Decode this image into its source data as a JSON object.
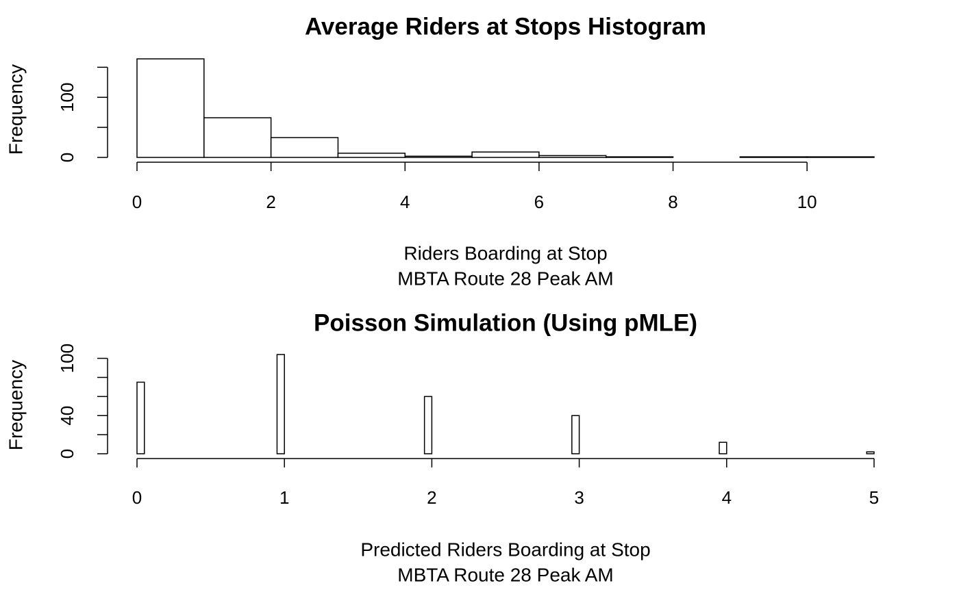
{
  "chart_data": [
    {
      "type": "histogram",
      "title": "Average Riders at Stops Histogram",
      "ylabel": "Frequency",
      "xlabel": [
        "Riders Boarding at Stop",
        "MBTA Route 28 Peak AM"
      ],
      "bins": [
        0,
        1,
        2,
        3,
        4,
        5,
        6,
        7,
        8,
        9,
        10,
        11
      ],
      "values": [
        164,
        66,
        33,
        7,
        2,
        9,
        3,
        1,
        0,
        1,
        1
      ],
      "xlim": [
        0,
        11
      ],
      "xticks": [
        0,
        2,
        4,
        6,
        8,
        10
      ],
      "ylim": [
        0,
        164
      ],
      "yticks": [
        0,
        100
      ],
      "yticks_unlabeled": [
        50,
        150
      ]
    },
    {
      "type": "histogram",
      "title": "Poisson Simulation (Using pMLE)",
      "ylabel": "Frequency",
      "xlabel": [
        "Predicted Riders Boarding at Stop",
        "MBTA Route 28 Peak AM"
      ],
      "bins": [
        0,
        0.05,
        0.1,
        0.15,
        0.2,
        0.25,
        0.3,
        0.35,
        0.4,
        0.45,
        0.5,
        0.55,
        0.6,
        0.65,
        0.7,
        0.75,
        0.8,
        0.85,
        0.9,
        0.95,
        1,
        1.05,
        1.1,
        1.15,
        1.2,
        1.25,
        1.3,
        1.35,
        1.4,
        1.45,
        1.5,
        1.55,
        1.6,
        1.65,
        1.7,
        1.75,
        1.8,
        1.85,
        1.9,
        1.95,
        2,
        2.05,
        2.1,
        2.15,
        2.2,
        2.25,
        2.3,
        2.35,
        2.4,
        2.45,
        2.5,
        2.55,
        2.6,
        2.65,
        2.7,
        2.75,
        2.8,
        2.85,
        2.9,
        2.95,
        3,
        3.05,
        3.1,
        3.15,
        3.2,
        3.25,
        3.3,
        3.35,
        3.4,
        3.45,
        3.5,
        3.55,
        3.6,
        3.65,
        3.7,
        3.75,
        3.8,
        3.85,
        3.9,
        3.95,
        4,
        4.05,
        4.1,
        4.15,
        4.2,
        4.25,
        4.3,
        4.35,
        4.4,
        4.45,
        4.5,
        4.55,
        4.6,
        4.65,
        4.7,
        4.75,
        4.8,
        4.85,
        4.9,
        4.95,
        5
      ],
      "values": [
        75,
        0,
        0,
        0,
        0,
        0,
        0,
        0,
        0,
        0,
        0,
        0,
        0,
        0,
        0,
        0,
        0,
        0,
        0,
        104,
        0,
        0,
        0,
        0,
        0,
        0,
        0,
        0,
        0,
        0,
        0,
        0,
        0,
        0,
        0,
        0,
        0,
        0,
        0,
        60,
        0,
        0,
        0,
        0,
        0,
        0,
        0,
        0,
        0,
        0,
        0,
        0,
        0,
        0,
        0,
        0,
        0,
        0,
        0,
        40,
        0,
        0,
        0,
        0,
        0,
        0,
        0,
        0,
        0,
        0,
        0,
        0,
        0,
        0,
        0,
        0,
        0,
        0,
        0,
        12,
        0,
        0,
        0,
        0,
        0,
        0,
        0,
        0,
        0,
        0,
        0,
        0,
        0,
        0,
        0,
        0,
        0,
        0,
        0,
        2
      ],
      "xlim": [
        0,
        5
      ],
      "xticks": [
        0,
        1,
        2,
        3,
        4,
        5
      ],
      "ylim": [
        0,
        104
      ],
      "yticks": [
        0,
        40,
        100
      ],
      "yticks_unlabeled": [
        20,
        60,
        80
      ]
    }
  ]
}
